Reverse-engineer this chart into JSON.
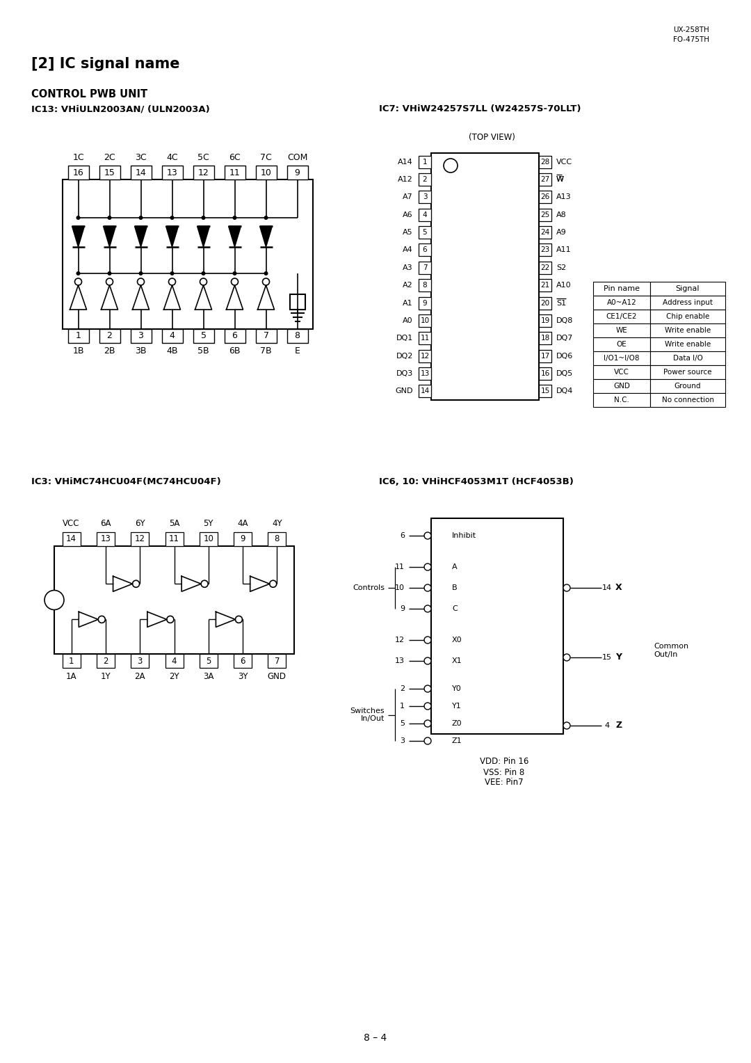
{
  "title": "[2] IC signal name",
  "header_right": "UX-258TH\nFO-475TH",
  "section_title": "CONTROL PWB UNIT",
  "ic13_title": "IC13: VHiULN2003AN/ (ULN2003A)",
  "ic7_title": "IC7: VHiW24257S7LL (W24257S-70LLT)",
  "ic3_title": "IC3: VHiMC74HCU04F(MC74HCU04F)",
  "ic6_title": "IC6, 10: VHiHCF4053M1T (HCF4053B)",
  "ic13_top_pins": [
    "1C",
    "2C",
    "3C",
    "4C",
    "5C",
    "6C",
    "7C",
    "COM"
  ],
  "ic13_top_nums": [
    "16",
    "15",
    "14",
    "13",
    "12",
    "11",
    "10",
    "9"
  ],
  "ic13_bot_pins": [
    "1B",
    "2B",
    "3B",
    "4B",
    "5B",
    "6B",
    "7B",
    "E"
  ],
  "ic13_bot_nums": [
    "1",
    "2",
    "3",
    "4",
    "5",
    "6",
    "7",
    "8"
  ],
  "ic7_left_pins": [
    "A14",
    "A12",
    "A7",
    "A6",
    "A5",
    "A4",
    "A3",
    "A2",
    "A1",
    "A0",
    "DQ1",
    "DQ2",
    "DQ3",
    "GND"
  ],
  "ic7_left_nums": [
    "1",
    "2",
    "3",
    "4",
    "5",
    "6",
    "7",
    "8",
    "9",
    "10",
    "11",
    "12",
    "13",
    "14"
  ],
  "ic7_right_pins": [
    "VCC",
    "W",
    "A13",
    "A8",
    "A9",
    "A11",
    "S2",
    "A10",
    "S1",
    "DQ8",
    "DQ7",
    "DQ6",
    "DQ5",
    "DQ4"
  ],
  "ic7_right_nums": [
    "28",
    "27",
    "26",
    "25",
    "24",
    "23",
    "22",
    "21",
    "20",
    "19",
    "18",
    "17",
    "16",
    "15"
  ],
  "ic7_table_headers": [
    "Pin name",
    "Signal"
  ],
  "ic7_table_rows": [
    [
      "A0~A12",
      "Address input"
    ],
    [
      "CE1/CE2",
      "Chip enable"
    ],
    [
      "WE",
      "Write enable"
    ],
    [
      "OE",
      "Write enable"
    ],
    [
      "I/O1~I/O8",
      "Data I/O"
    ],
    [
      "VCC",
      "Power source"
    ],
    [
      "GND",
      "Ground"
    ],
    [
      "N.C.",
      "No connection"
    ]
  ],
  "ic3_top_pins": [
    "VCC",
    "6A",
    "6Y",
    "5A",
    "5Y",
    "4A",
    "4Y"
  ],
  "ic3_top_nums": [
    "14",
    "13",
    "12",
    "11",
    "10",
    "9",
    "8"
  ],
  "ic3_bot_nums": [
    "1",
    "2",
    "3",
    "4",
    "5",
    "6",
    "7"
  ],
  "ic3_bot_pins": [
    "1A",
    "1Y",
    "2A",
    "2Y",
    "3A",
    "3Y",
    "GND"
  ],
  "ic6_left_pins": [
    "6",
    "11",
    "10",
    "9",
    "12",
    "13",
    "2",
    "1",
    "5",
    "3"
  ],
  "ic6_left_labels": [
    "Inhibit",
    "A",
    "B",
    "C",
    "X0",
    "X1",
    "Y0",
    "Y1",
    "Z0",
    "Z1"
  ],
  "ic6_right_pins": [
    "14",
    "15",
    "4"
  ],
  "ic6_right_labels": [
    "X",
    "Y",
    "Z"
  ],
  "page_num": "8 – 4",
  "bg": "#ffffff"
}
